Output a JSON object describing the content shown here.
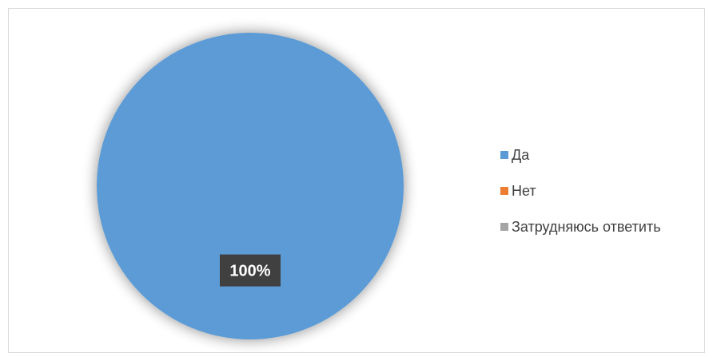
{
  "chart_data": {
    "type": "pie",
    "categories": [
      "Да",
      "Нет",
      "Затрудняюсь ответить"
    ],
    "values": [
      100,
      0,
      0
    ],
    "data_labels": [
      "100%"
    ],
    "colors": [
      "#5b9bd5",
      "#ed7d31",
      "#a5a5a5"
    ],
    "legend_position": "right",
    "title": ""
  }
}
